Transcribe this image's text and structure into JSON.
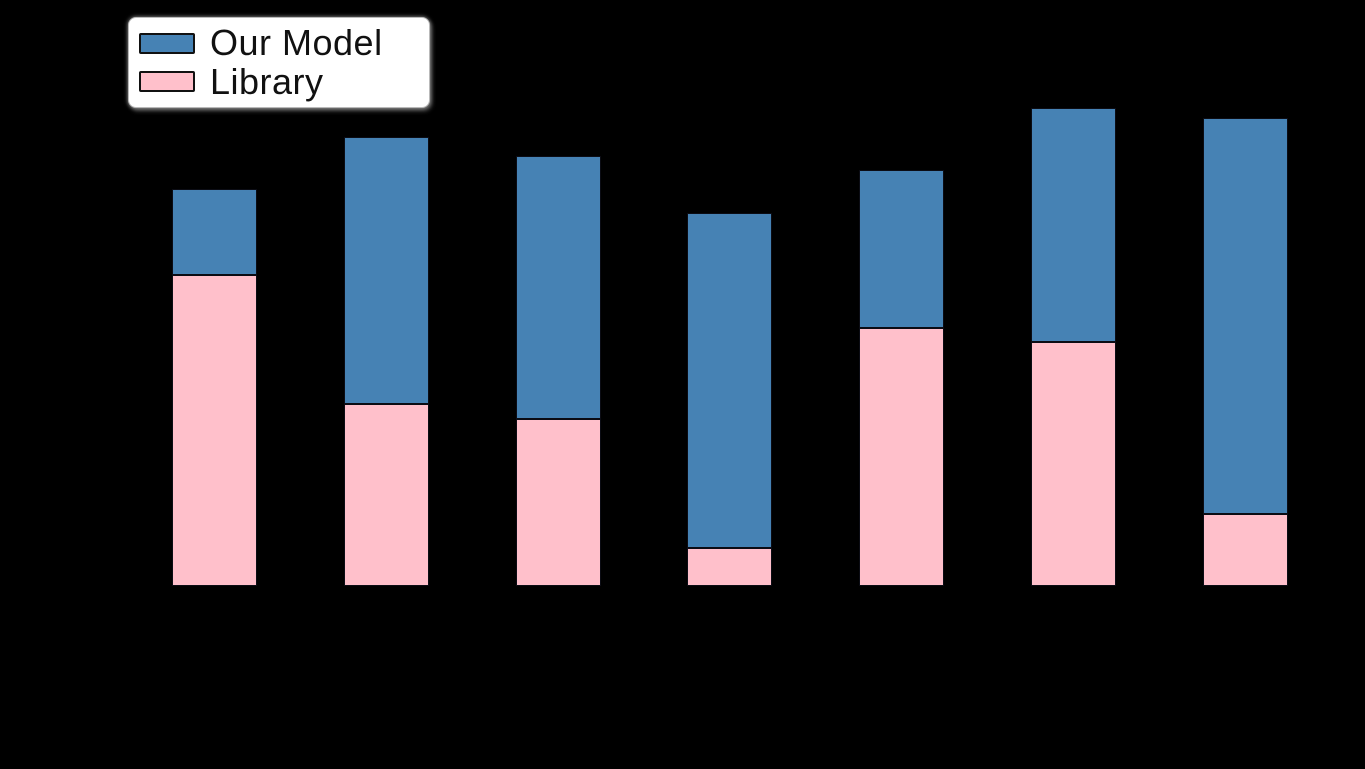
{
  "colors": {
    "background": "#000000",
    "bar_edge": "#0b0c14",
    "our_model_blue": "#4682B4",
    "library_pink": "#FFC0CB",
    "legend_background": "#ffffff",
    "legend_border": "#b9b9b9",
    "legend_text": "#111111"
  },
  "legend": {
    "items": [
      {
        "label": "Our Model",
        "color": "#4682B4",
        "swatch": "blue-swatch"
      },
      {
        "label": "Library",
        "color": "#FFC0CB",
        "swatch": "pink-swatch"
      }
    ]
  },
  "chart_data": {
    "type": "bar",
    "stacked": true,
    "orientation": "vertical",
    "title": "",
    "xlabel": "",
    "ylabel": "",
    "categories": [
      "",
      "",
      "",
      "",
      "",
      "",
      ""
    ],
    "series": [
      {
        "name": "Library",
        "color": "#FFC0CB",
        "values": [
          65,
          38,
          35,
          8,
          54,
          51,
          15
        ]
      },
      {
        "name": "Our Model",
        "color": "#4682B4",
        "values": [
          18,
          56,
          55,
          70,
          33,
          49,
          83
        ]
      }
    ],
    "stack_totals": [
      83,
      94,
      90,
      78,
      87,
      100,
      98
    ],
    "ylim": [
      0,
      100
    ],
    "grid": false,
    "axes_visible": false,
    "legend_position": "upper left"
  }
}
